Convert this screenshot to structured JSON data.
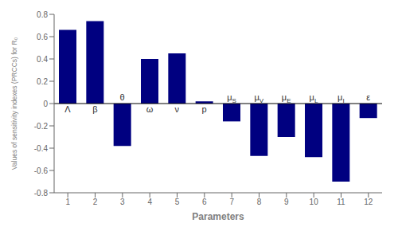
{
  "chart_data": {
    "type": "bar",
    "xlabel": "Parameters",
    "ylabel": "Values of sensitivity indexes (PRCCs) for R₀",
    "categories": [
      "1",
      "2",
      "3",
      "4",
      "5",
      "6",
      "7",
      "8",
      "9",
      "10",
      "11",
      "12"
    ],
    "values": [
      0.66,
      0.74,
      -0.38,
      0.4,
      0.45,
      0.02,
      -0.16,
      -0.47,
      -0.3,
      -0.48,
      -0.7,
      -0.13
    ],
    "color": "#000080",
    "ylim": [
      -0.8,
      0.8
    ],
    "yticks": [
      -0.8,
      -0.6,
      -0.4,
      -0.2,
      0,
      0.2,
      0.4,
      0.6,
      0.8
    ],
    "grid": false,
    "annotations": [
      {
        "category": "1",
        "text": "Λ"
      },
      {
        "category": "2",
        "text": "β"
      },
      {
        "category": "3",
        "text": "θ"
      },
      {
        "category": "4",
        "text": "ω"
      },
      {
        "category": "5",
        "text": "ν"
      },
      {
        "category": "6",
        "text": "p"
      },
      {
        "category": "7",
        "text": "μ",
        "subscript": "S"
      },
      {
        "category": "8",
        "text": "μ",
        "subscript": "V"
      },
      {
        "category": "9",
        "text": "μ",
        "subscript": "E"
      },
      {
        "category": "10",
        "text": "μ",
        "subscript": "L"
      },
      {
        "category": "11",
        "text": "μ",
        "subscript": "I"
      },
      {
        "category": "12",
        "text": "ε"
      }
    ]
  }
}
